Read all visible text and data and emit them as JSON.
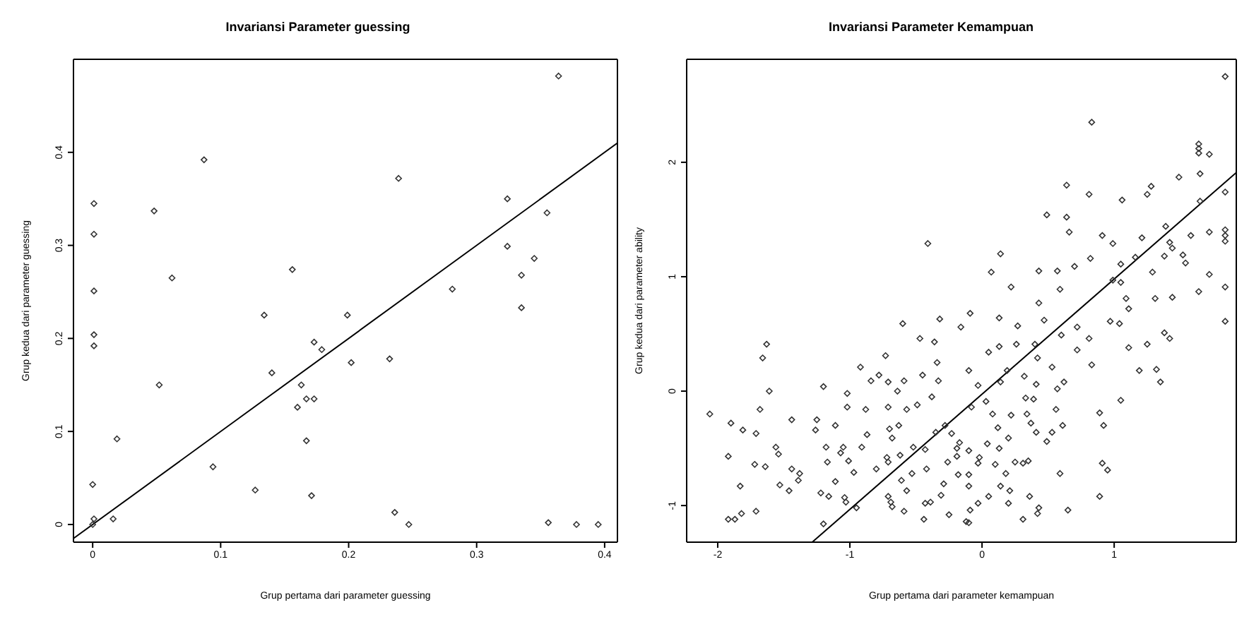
{
  "chart_data": [
    {
      "type": "scatter",
      "title": "Invariansi Parameter guessing",
      "xlabel": "Grup pertama dari parameter guessing",
      "ylabel": "Grup kedua dari parameter guessing",
      "xlim": [
        -0.015,
        0.41
      ],
      "ylim": [
        -0.019,
        0.5
      ],
      "xticks": [
        0,
        0.1,
        0.2,
        0.3,
        0.4
      ],
      "yticks": [
        0,
        0.1,
        0.2,
        0.3,
        0.4
      ],
      "marker": "diamond",
      "series": [
        {
          "color": "#333333",
          "x": [
            0.364,
            0.087,
            0.239,
            0.001,
            0.048,
            0.324,
            0.355,
            0.001,
            0.324,
            0.345,
            0.062,
            0.156,
            0.335,
            0.001,
            0.281,
            0.335,
            0.134,
            0.199,
            0.001,
            0.001,
            0.173,
            0.179,
            0.202,
            0.232,
            0.14,
            0.052,
            0.163,
            0.167,
            0.173,
            0.16,
            0.019,
            0.167,
            0.094,
            0.0,
            0.127,
            0.171,
            0.236,
            0.247,
            0.016,
            0.001,
            0.0,
            0.356,
            0.378,
            0.395
          ],
          "values": [
            0.482,
            0.392,
            0.372,
            0.345,
            0.337,
            0.35,
            0.335,
            0.312,
            0.299,
            0.286,
            0.265,
            0.274,
            0.268,
            0.251,
            0.253,
            0.233,
            0.225,
            0.225,
            0.204,
            0.192,
            0.196,
            0.188,
            0.174,
            0.178,
            0.163,
            0.15,
            0.15,
            0.135,
            0.135,
            0.126,
            0.092,
            0.09,
            0.062,
            0.043,
            0.037,
            0.031,
            0.013,
            0.0,
            0.006,
            0.006,
            0.0,
            0.002,
            0.0,
            0.0
          ]
        },
        {
          "type": "line",
          "color": "#000000",
          "line_style": "solid",
          "marker": "none",
          "x": [
            -0.015,
            0.41
          ],
          "values": [
            -0.015,
            0.41
          ]
        }
      ]
    },
    {
      "type": "scatter",
      "title": "Invariansi Parameter Kemampuan",
      "xlabel": "Grup pertama dari parameter kemampuan",
      "ylabel": "Grup kedua dari parameter ability",
      "xlim": [
        -2.235,
        1.924
      ],
      "ylim": [
        -1.32,
        2.9
      ],
      "xticks": [
        -2,
        -1,
        0,
        1
      ],
      "yticks": [
        -1,
        0,
        1,
        2
      ],
      "marker": "diamond",
      "series": [
        {
          "color": "#333333",
          "x": [
            1.84,
            0.83,
            1.64,
            1.64,
            1.64,
            1.72,
            1.65,
            1.49,
            0.64,
            1.28,
            1.25,
            0.81,
            1.06,
            1.84,
            1.65,
            0.49,
            0.64,
            0.66,
            1.39,
            1.84,
            1.84,
            1.84,
            1.58,
            1.72,
            0.91,
            0.99,
            1.21,
            1.42,
            1.44,
            -0.41,
            0.14,
            0.82,
            1.16,
            1.38,
            1.52,
            1.54,
            1.05,
            0.7,
            0.07,
            0.43,
            0.57,
            1.29,
            1.72,
            0.99,
            1.05,
            0.22,
            0.59,
            1.84,
            1.09,
            1.31,
            1.44,
            1.64,
            0.43,
            1.11,
            -0.09,
            -0.32,
            0.13,
            0.47,
            1.84,
            0.97,
            1.04,
            -0.6,
            0.27,
            -0.16,
            0.72,
            -0.47,
            0.6,
            0.81,
            1.38,
            1.42,
            -0.36,
            -1.63,
            -1.66,
            0.26,
            0.13,
            0.4,
            1.25,
            1.11,
            0.72,
            0.05,
            0.42,
            -0.73,
            -0.34,
            0.83,
            -0.92,
            0.53,
            0.19,
            -0.1,
            1.19,
            1.32,
            -0.78,
            -0.45,
            -0.84,
            -0.71,
            -0.59,
            -0.33,
            0.14,
            0.62,
            1.35,
            0.32,
            -1.2,
            -1.61,
            -1.02,
            -0.64,
            -0.03,
            0.41,
            0.57,
            -0.38,
            0.03,
            0.39,
            1.05,
            -2.06,
            -1.68,
            -1.02,
            -0.88,
            -0.71,
            -0.57,
            -0.49,
            -0.08,
            0.33,
            0.56,
            0.89,
            -1.44,
            -1.25,
            -1.11,
            -1.9,
            -1.81,
            -1.71,
            -1.26,
            -0.87,
            -0.7,
            -0.63,
            -0.35,
            -0.28,
            0.08,
            0.22,
            0.34,
            0.12,
            0.37,
            0.61,
            0.92,
            -0.68,
            -0.23,
            -0.17,
            0.04,
            0.2,
            0.41,
            0.49,
            0.53,
            -1.56,
            -1.18,
            -1.05,
            -0.91,
            -0.52,
            -0.43,
            -0.19,
            -0.1,
            0.13,
            -1.54,
            -1.92,
            -1.07,
            -0.72,
            -0.62,
            -0.19,
            -0.02,
            -1.72,
            -1.64,
            -1.17,
            -1.01,
            -0.71,
            -0.26,
            -0.03,
            0.1,
            0.25,
            0.31,
            0.35,
            0.91,
            -1.44,
            -1.38,
            -0.97,
            -0.8,
            -0.53,
            -0.42,
            -0.18,
            -0.1,
            0.18,
            0.59,
            0.95,
            -1.39,
            -1.11,
            -0.61,
            -0.29,
            -0.1,
            0.14,
            -1.83,
            -1.53,
            -1.46,
            -0.57,
            0.21,
            -1.22,
            -1.16,
            -0.71,
            -0.31,
            0.05,
            0.36,
            0.89,
            -1.04,
            -1.03,
            -0.69,
            -0.43,
            -0.39,
            -0.03,
            0.2,
            -0.95,
            -0.68,
            -0.59,
            -0.09,
            0.43,
            0.42,
            0.65,
            -1.71,
            -1.82,
            -1.92,
            -1.87,
            -0.25,
            -0.44,
            -0.12,
            -0.1,
            0.31,
            -1.2
          ],
          "values": [
            2.75,
            2.35,
            2.16,
            2.12,
            2.08,
            2.07,
            1.9,
            1.87,
            1.8,
            1.79,
            1.72,
            1.72,
            1.67,
            1.74,
            1.66,
            1.54,
            1.52,
            1.39,
            1.44,
            1.41,
            1.36,
            1.31,
            1.36,
            1.39,
            1.36,
            1.29,
            1.34,
            1.3,
            1.25,
            1.29,
            1.2,
            1.16,
            1.17,
            1.18,
            1.19,
            1.12,
            1.11,
            1.09,
            1.04,
            1.05,
            1.05,
            1.04,
            1.02,
            0.97,
            0.95,
            0.91,
            0.89,
            0.91,
            0.81,
            0.81,
            0.82,
            0.87,
            0.77,
            0.72,
            0.68,
            0.63,
            0.64,
            0.62,
            0.61,
            0.61,
            0.59,
            0.59,
            0.57,
            0.56,
            0.56,
            0.46,
            0.49,
            0.46,
            0.51,
            0.46,
            0.43,
            0.41,
            0.29,
            0.41,
            0.39,
            0.41,
            0.41,
            0.38,
            0.36,
            0.34,
            0.29,
            0.31,
            0.25,
            0.23,
            0.21,
            0.21,
            0.18,
            0.18,
            0.18,
            0.19,
            0.14,
            0.14,
            0.09,
            0.08,
            0.09,
            0.09,
            0.08,
            0.08,
            0.08,
            0.13,
            0.04,
            0.0,
            -0.02,
            0.0,
            0.05,
            0.06,
            0.02,
            -0.05,
            -0.09,
            -0.07,
            -0.08,
            -0.2,
            -0.16,
            -0.14,
            -0.16,
            -0.14,
            -0.16,
            -0.12,
            -0.14,
            -0.06,
            -0.16,
            -0.19,
            -0.25,
            -0.25,
            -0.3,
            -0.28,
            -0.34,
            -0.37,
            -0.34,
            -0.38,
            -0.33,
            -0.3,
            -0.36,
            -0.3,
            -0.2,
            -0.21,
            -0.2,
            -0.32,
            -0.28,
            -0.3,
            -0.3,
            -0.41,
            -0.37,
            -0.45,
            -0.46,
            -0.41,
            -0.36,
            -0.44,
            -0.36,
            -0.49,
            -0.49,
            -0.49,
            -0.49,
            -0.49,
            -0.51,
            -0.5,
            -0.52,
            -0.5,
            -0.55,
            -0.57,
            -0.54,
            -0.58,
            -0.56,
            -0.57,
            -0.58,
            -0.64,
            -0.66,
            -0.62,
            -0.61,
            -0.62,
            -0.62,
            -0.63,
            -0.64,
            -0.62,
            -0.63,
            -0.61,
            -0.63,
            -0.68,
            -0.72,
            -0.71,
            -0.68,
            -0.72,
            -0.68,
            -0.73,
            -0.73,
            -0.72,
            -0.72,
            -0.69,
            -0.78,
            -0.79,
            -0.78,
            -0.81,
            -0.83,
            -0.83,
            -0.83,
            -0.82,
            -0.87,
            -0.87,
            -0.87,
            -0.89,
            -0.92,
            -0.92,
            -0.91,
            -0.92,
            -0.92,
            -0.92,
            -0.93,
            -0.97,
            -0.97,
            -0.98,
            -0.97,
            -0.98,
            -0.98,
            -1.02,
            -1.01,
            -1.05,
            -1.04,
            -1.02,
            -1.07,
            -1.04,
            -1.05,
            -1.07,
            -1.12,
            -1.12,
            -1.08,
            -1.12,
            -1.14,
            -1.15,
            -1.12,
            -1.16
          ]
        },
        {
          "type": "line",
          "color": "#000000",
          "line_style": "solid",
          "marker": "none",
          "x": [
            -1.285,
            1.924
          ],
          "values": [
            -1.32,
            1.91
          ]
        }
      ]
    }
  ]
}
